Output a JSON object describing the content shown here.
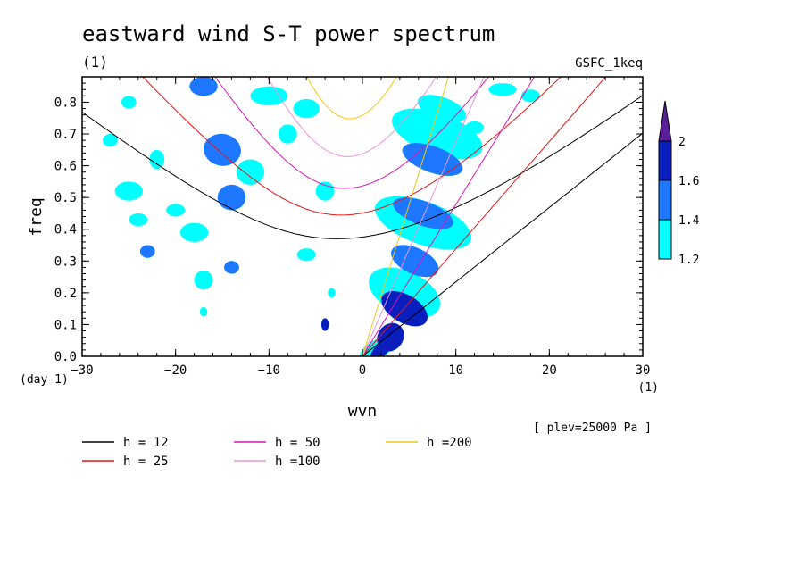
{
  "chart_data": {
    "type": "contour",
    "title": "eastward wind S-T power spectrum",
    "subtitle_left": "(1)",
    "subtitle_right": "GSFC_1keq",
    "xlabel": "wvn",
    "ylabel": "freq",
    "x_unit": "(1)",
    "y_unit": "(day-1)",
    "xlim": [
      -30,
      30
    ],
    "ylim": [
      0,
      0.88
    ],
    "xticks": [
      -30,
      -20,
      -10,
      0,
      10,
      20,
      30
    ],
    "yticks": [
      0.0,
      0.1,
      0.2,
      0.3,
      0.4,
      0.5,
      0.6,
      0.7,
      0.8
    ],
    "xtick_labels": [
      "−30",
      "−20",
      "−10",
      "0",
      "10",
      "20",
      "30"
    ],
    "ytick_labels": [
      "0.0",
      "0.1",
      "0.2",
      "0.3",
      "0.4",
      "0.5",
      "0.6",
      "0.7",
      "0.8"
    ],
    "annotation": "[ plev=25000 Pa ]",
    "colorbar": {
      "levels": [
        1.2,
        1.4,
        1.6,
        2
      ],
      "labels": [
        "1.2",
        "1.4",
        "1.6",
        "2"
      ],
      "colors": [
        "#00ffff",
        "#1e78ff",
        "#0a1ebe",
        "#5a1e96"
      ]
    },
    "dispersion_curves": [
      {
        "label": "h = 12",
        "h": 12,
        "color": "#000000"
      },
      {
        "label": "h = 25",
        "h": 25,
        "color": "#e61414"
      },
      {
        "label": "h = 50",
        "h": 50,
        "color": "#dc14b4"
      },
      {
        "label": "h =100",
        "h": 100,
        "color": "#e696dc"
      },
      {
        "label": "h =200",
        "h": 200,
        "color": "#f0c814"
      }
    ],
    "legend_placement": "bottom",
    "contour_patches": [
      {
        "x": 2,
        "y": 0.02,
        "rx": 1.5,
        "ry": 0.02,
        "level": 3,
        "rot": -45
      },
      {
        "x": 3,
        "y": 0.06,
        "rx": 1.6,
        "ry": 0.04,
        "level": 3,
        "rot": -55
      },
      {
        "x": 4.5,
        "y": 0.15,
        "rx": 1.5,
        "ry": 0.08,
        "level": 3,
        "rot": -60
      },
      {
        "x": 5.6,
        "y": 0.3,
        "rx": 1.4,
        "ry": 0.08,
        "level": 2,
        "rot": -65
      },
      {
        "x": 6.5,
        "y": 0.45,
        "rx": 1.3,
        "ry": 0.1,
        "level": 2,
        "rot": -70
      },
      {
        "x": 7.5,
        "y": 0.62,
        "rx": 1.4,
        "ry": 0.1,
        "level": 2,
        "rot": -70
      },
      {
        "x": 8.5,
        "y": 0.78,
        "rx": 1.2,
        "ry": 0.08,
        "level": 1,
        "rot": -70
      },
      {
        "x": 5.8,
        "y": 0.13,
        "rx": 0.7,
        "ry": 0.02,
        "level": 3,
        "rot": 0
      },
      {
        "x": 1.5,
        "y": 0.02,
        "rx": 2,
        "ry": 0.03,
        "level": 1,
        "rot": -30
      },
      {
        "x": 4.5,
        "y": 0.2,
        "rx": 2.3,
        "ry": 0.12,
        "level": 1,
        "rot": -65
      },
      {
        "x": 6.5,
        "y": 0.42,
        "rx": 2.3,
        "ry": 0.16,
        "level": 1,
        "rot": -70
      },
      {
        "x": 8,
        "y": 0.7,
        "rx": 2.2,
        "ry": 0.15,
        "level": 1,
        "rot": -70
      },
      {
        "x": -22,
        "y": 0.62,
        "rx": 0.8,
        "ry": 0.03,
        "level": 1,
        "rot": 0
      },
      {
        "x": -15,
        "y": 0.65,
        "rx": 2,
        "ry": 0.05,
        "level": 2,
        "rot": 10
      },
      {
        "x": -14,
        "y": 0.5,
        "rx": 1.5,
        "ry": 0.04,
        "level": 2,
        "rot": 0
      },
      {
        "x": -12,
        "y": 0.58,
        "rx": 1.5,
        "ry": 0.04,
        "level": 1,
        "rot": 0
      },
      {
        "x": -25,
        "y": 0.52,
        "rx": 1.5,
        "ry": 0.03,
        "level": 1,
        "rot": 0
      },
      {
        "x": -23,
        "y": 0.33,
        "rx": 0.8,
        "ry": 0.02,
        "level": 2,
        "rot": 0
      },
      {
        "x": -17,
        "y": 0.24,
        "rx": 1,
        "ry": 0.03,
        "level": 1,
        "rot": 0
      },
      {
        "x": -14,
        "y": 0.28,
        "rx": 0.8,
        "ry": 0.02,
        "level": 2,
        "rot": 0
      },
      {
        "x": -18,
        "y": 0.39,
        "rx": 1.5,
        "ry": 0.03,
        "level": 1,
        "rot": 0
      },
      {
        "x": -17,
        "y": 0.85,
        "rx": 1.5,
        "ry": 0.03,
        "level": 2,
        "rot": 0
      },
      {
        "x": -10,
        "y": 0.82,
        "rx": 2,
        "ry": 0.03,
        "level": 1,
        "rot": 0
      },
      {
        "x": -6,
        "y": 0.78,
        "rx": 1.4,
        "ry": 0.03,
        "level": 1,
        "rot": 0
      },
      {
        "x": -8,
        "y": 0.7,
        "rx": 1,
        "ry": 0.03,
        "level": 1,
        "rot": 0
      },
      {
        "x": -4,
        "y": 0.52,
        "rx": 1,
        "ry": 0.03,
        "level": 1,
        "rot": 0
      },
      {
        "x": -6,
        "y": 0.32,
        "rx": 1,
        "ry": 0.02,
        "level": 1,
        "rot": 0
      },
      {
        "x": -3.3,
        "y": 0.2,
        "rx": 0.4,
        "ry": 0.015,
        "level": 1,
        "rot": 0
      },
      {
        "x": -4,
        "y": 0.1,
        "rx": 0.4,
        "ry": 0.02,
        "level": 3,
        "rot": 0
      },
      {
        "x": -24,
        "y": 0.43,
        "rx": 1,
        "ry": 0.02,
        "level": 1,
        "rot": 0
      },
      {
        "x": -27,
        "y": 0.68,
        "rx": 0.8,
        "ry": 0.02,
        "level": 1,
        "rot": 0
      },
      {
        "x": -20,
        "y": 0.46,
        "rx": 1,
        "ry": 0.02,
        "level": 1,
        "rot": 0
      },
      {
        "x": -25,
        "y": 0.8,
        "rx": 0.8,
        "ry": 0.02,
        "level": 1,
        "rot": 0
      },
      {
        "x": 15,
        "y": 0.84,
        "rx": 1.5,
        "ry": 0.02,
        "level": 1,
        "rot": 0
      },
      {
        "x": 12,
        "y": 0.72,
        "rx": 1,
        "ry": 0.02,
        "level": 1,
        "rot": 0
      },
      {
        "x": 18,
        "y": 0.82,
        "rx": 1,
        "ry": 0.02,
        "level": 1,
        "rot": 0
      },
      {
        "x": -17,
        "y": 0.14,
        "rx": 0.4,
        "ry": 0.015,
        "level": 1,
        "rot": 0
      }
    ]
  }
}
